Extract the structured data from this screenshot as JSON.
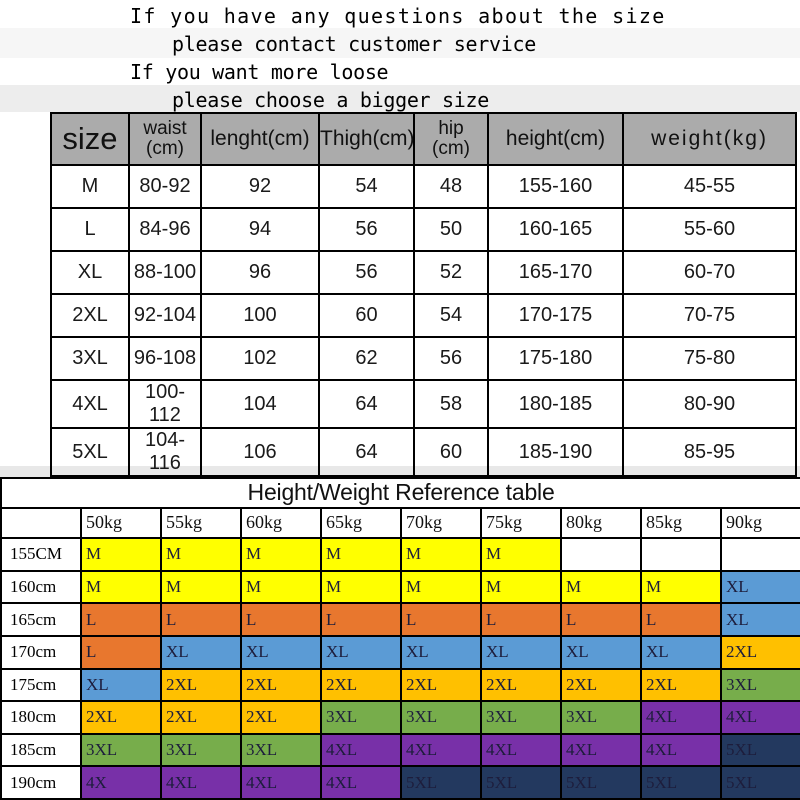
{
  "notes": {
    "line1": "If you have any questions about the size",
    "line2": "please contact customer service",
    "line3": "If you want more loose",
    "line4": "please choose a bigger size"
  },
  "size_table": {
    "headers": {
      "size": "size",
      "waist": "waist\n(cm)",
      "length": "lenght(cm)",
      "thigh": "Thigh(cm)",
      "hip": "hip\n(cm)",
      "height": "height(cm)",
      "weight": "weight(kg)"
    },
    "rows": [
      [
        "M",
        "80-92",
        "92",
        "54",
        "48",
        "155-160",
        "45-55"
      ],
      [
        "L",
        "84-96",
        "94",
        "56",
        "50",
        "160-165",
        "55-60"
      ],
      [
        "XL",
        "88-100",
        "96",
        "56",
        "52",
        "165-170",
        "60-70"
      ],
      [
        "2XL",
        "92-104",
        "100",
        "60",
        "54",
        "170-175",
        "70-75"
      ],
      [
        "3XL",
        "96-108",
        "102",
        "62",
        "56",
        "175-180",
        "75-80"
      ],
      [
        "4XL",
        "100-112",
        "104",
        "64",
        "58",
        "180-185",
        "80-90"
      ],
      [
        "5XL",
        "104-116",
        "106",
        "64",
        "60",
        "185-190",
        "85-95"
      ]
    ]
  },
  "reference_table": {
    "title": "Height/Weight Reference table",
    "weight_headers": [
      "",
      "50kg",
      "55kg",
      "60kg",
      "65kg",
      "70kg",
      "75kg",
      "80kg",
      "85kg",
      "90kg"
    ],
    "rows": [
      {
        "label": "155CM",
        "cells": [
          "M",
          "M",
          "M",
          "M",
          "M",
          "M",
          "",
          "",
          ""
        ]
      },
      {
        "label": "160cm",
        "cells": [
          "M",
          "M",
          "M",
          "M",
          "M",
          "M",
          "M",
          "M",
          "XL"
        ]
      },
      {
        "label": "165cm",
        "cells": [
          "L",
          "L",
          "L",
          "L",
          "L",
          "L",
          "L",
          "L",
          "XL"
        ]
      },
      {
        "label": "170cm",
        "cells": [
          "L",
          "XL",
          "XL",
          "XL",
          "XL",
          "XL",
          "XL",
          "XL",
          "2XL"
        ]
      },
      {
        "label": "175cm",
        "cells": [
          "XL",
          "2XL",
          "2XL",
          "2XL",
          "2XL",
          "2XL",
          "2XL",
          "2XL",
          "3XL"
        ]
      },
      {
        "label": "180cm",
        "cells": [
          "2XL",
          "2XL",
          "2XL",
          "3XL",
          "3XL",
          "3XL",
          "3XL",
          "4XL",
          "4XL"
        ]
      },
      {
        "label": "185cm",
        "cells": [
          "3XL",
          "3XL",
          "3XL",
          "4XL",
          "4XL",
          "4XL",
          "4XL",
          "4XL",
          "5XL"
        ]
      },
      {
        "label": "190cm",
        "cells": [
          "4X",
          "4XL",
          "4XL",
          "4XL",
          "5XL",
          "5XL",
          "5XL",
          "5XL",
          "5XL"
        ]
      }
    ],
    "size_colors": {
      "M": "yellow",
      "L": "orange",
      "XL": "blue",
      "2XL": "gold",
      "3XL": "green",
      "4XL": "purple",
      "4X": "purple",
      "5XL": "navy",
      "": "white"
    },
    "palette": {
      "yellow": "#FFFF00",
      "orange": "#E8772E",
      "blue": "#5B9BD5",
      "gold": "#FFC000",
      "green": "#77AD4B",
      "purple": "#7830A8",
      "navy": "#23395F",
      "white": "#FFFFFF"
    }
  }
}
